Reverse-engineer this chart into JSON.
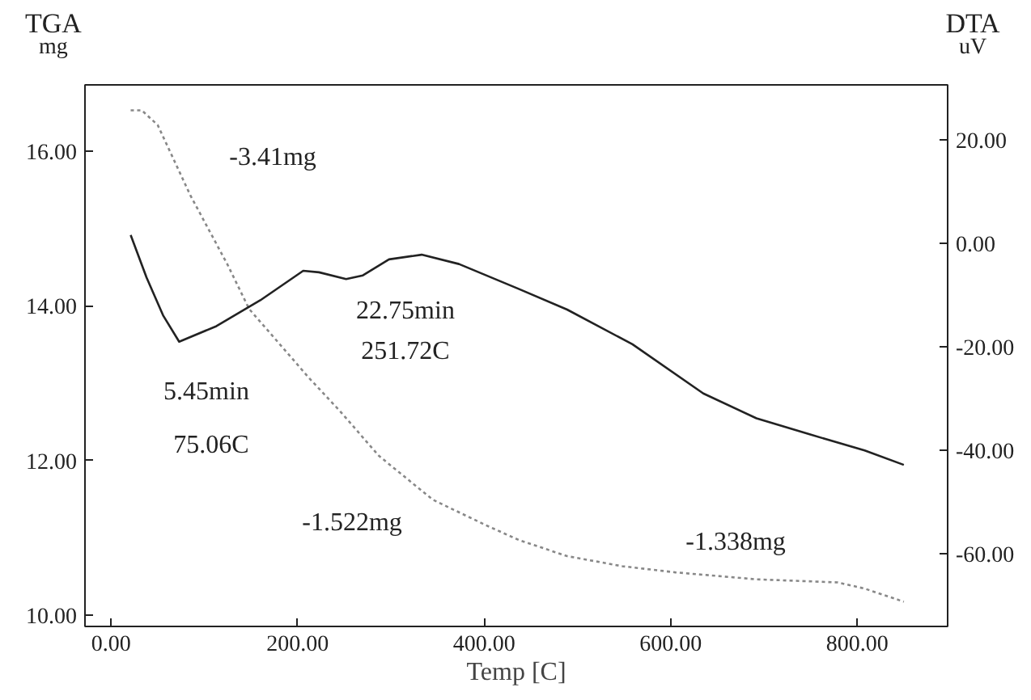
{
  "chart_data": {
    "type": "line",
    "xlabel": "Temp [C]",
    "ylabel": "TGA\nmg",
    "y2label": "DTA\nuV",
    "x": [
      21,
      33,
      50,
      85,
      125,
      148,
      189,
      212,
      246,
      287,
      345,
      402,
      437,
      489,
      548,
      605,
      692,
      779,
      808,
      850
    ],
    "series": [
      {
        "color": "#888888",
        "line_style": "dotted",
        "values": [
          16.53,
          16.53,
          16.34,
          15.43,
          14.53,
          13.96,
          13.39,
          13.07,
          12.63,
          12.06,
          11.49,
          11.16,
          10.97,
          10.76,
          10.63,
          10.55,
          10.46,
          10.42,
          10.34,
          10.17
        ]
      },
      {
        "color": "#222222",
        "line_style": "solid",
        "axis": "y2",
        "x": [
          21,
          38,
          56,
          73,
          113,
          160,
          206,
          223,
          252,
          270,
          298,
          333,
          373,
          437,
          489,
          559,
          635,
          692,
          749,
          808,
          850
        ],
        "values": [
          1.6,
          -6.6,
          -14,
          -19,
          -16,
          -11,
          -5.3,
          -5.6,
          -6.9,
          -6.2,
          -3.1,
          -2.2,
          -4,
          -8.8,
          -12.8,
          -19.5,
          -29,
          -33.8,
          -36.9,
          -40,
          -42.8
        ]
      }
    ],
    "xlim": [
      -28,
      897
    ],
    "ylim": [
      9.85,
      16.86
    ],
    "y2lim": [
      -74,
      30.6
    ],
    "xticks": [
      {
        "value": 0,
        "label": "0.00"
      },
      {
        "value": 200,
        "label": "200.00"
      },
      {
        "value": 400,
        "label": "400.00"
      },
      {
        "value": 600,
        "label": "600.00"
      },
      {
        "value": 800,
        "label": "800.00"
      }
    ],
    "yticks": [
      {
        "value": 10,
        "label": "10.00"
      },
      {
        "value": 12,
        "label": "12.00"
      },
      {
        "value": 14,
        "label": "14.00"
      },
      {
        "value": 16,
        "label": "16.00"
      }
    ],
    "y2ticks": [
      {
        "value": -60,
        "label": "-60.00"
      },
      {
        "value": -40,
        "label": "-40.00"
      },
      {
        "value": -20,
        "label": "-20.00"
      },
      {
        "value": 0,
        "label": "0.00"
      },
      {
        "value": 20,
        "label": "20.00"
      }
    ],
    "annotations": [
      "-3.41mg",
      "22.75min",
      "251.72C",
      "5.45min",
      "75.06C",
      "-1.522mg",
      "-1.338mg"
    ],
    "grid": false
  }
}
